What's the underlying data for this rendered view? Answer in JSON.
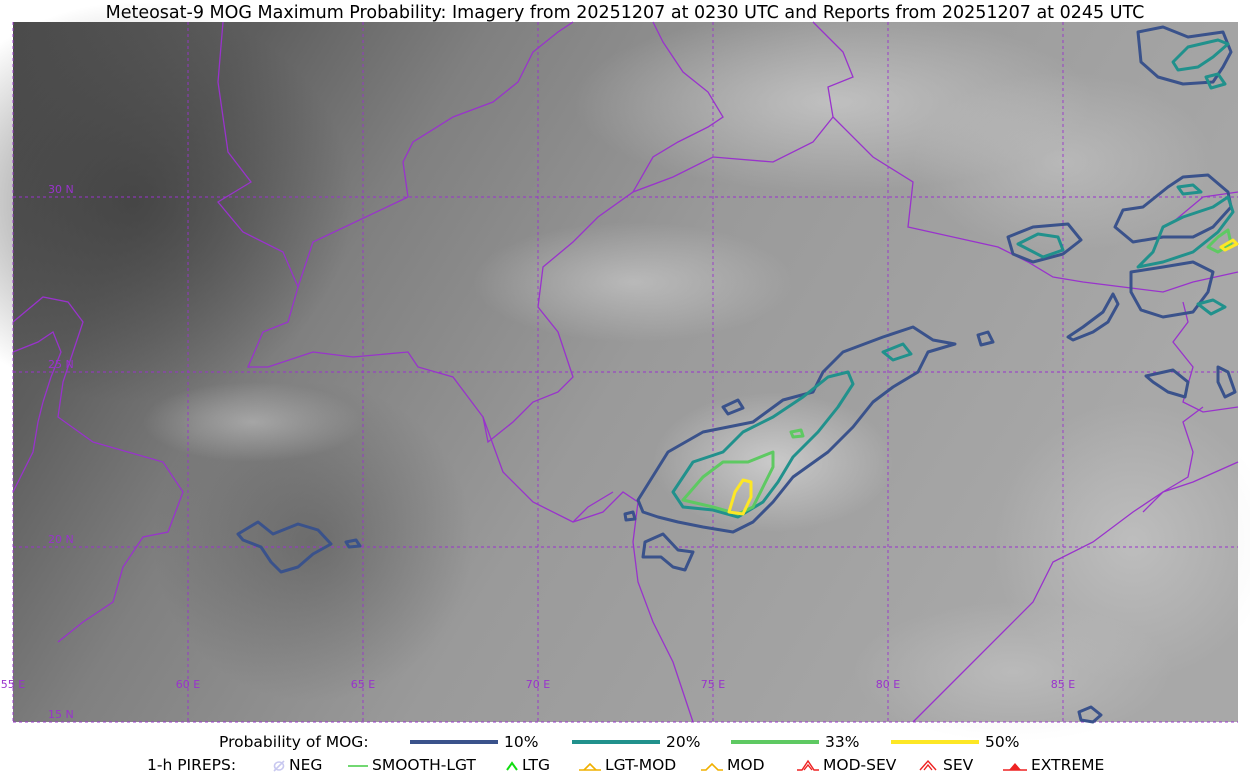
{
  "title": "Meteosat-9 MOG Maximum Probability: Imagery from 20251207 at 0230 UTC and Reports from 20251207 at 0245 UTC",
  "map": {
    "lon_range": [
      55,
      90
    ],
    "lat_range": [
      15,
      35
    ],
    "lon_labels": [
      {
        "lon": 55,
        "text": "55 E"
      },
      {
        "lon": 60,
        "text": "60 E"
      },
      {
        "lon": 65,
        "text": "65 E"
      },
      {
        "lon": 70,
        "text": "70 E"
      },
      {
        "lon": 75,
        "text": "75 E"
      },
      {
        "lon": 80,
        "text": "80 E"
      },
      {
        "lon": 85,
        "text": "85 E"
      }
    ],
    "lat_labels": [
      {
        "lat": 30,
        "text": "30 N"
      },
      {
        "lat": 25,
        "text": "25 N"
      },
      {
        "lat": 20,
        "text": "20 N"
      },
      {
        "lat": 15,
        "text": "15 N"
      }
    ],
    "colors": {
      "gridline": "#9933cc",
      "border": "#9933cc",
      "label": "#9933cc"
    }
  },
  "legend": {
    "probability_label": "Probability of MOG:",
    "probability_levels": [
      {
        "label": "10%",
        "color": "#3a528b"
      },
      {
        "label": "20%",
        "color": "#21918c"
      },
      {
        "label": "33%",
        "color": "#5ec962"
      },
      {
        "label": "50%",
        "color": "#fde725"
      }
    ],
    "pireps_label": "1-h PIREPS:",
    "pireps": [
      {
        "label": "NEG",
        "icon": "neg-icon",
        "color": "#c8c8f0"
      },
      {
        "label": "SMOOTH-LGT",
        "icon": "smooth-lgt-icon",
        "color": "#44cc44"
      },
      {
        "label": "LTG",
        "icon": "ltg-icon",
        "color": "#11dd11"
      },
      {
        "label": "LGT-MOD",
        "icon": "lgt-mod-icon",
        "color": "#f0b000"
      },
      {
        "label": "MOD",
        "icon": "mod-icon",
        "color": "#f0b000"
      },
      {
        "label": "MOD-SEV",
        "icon": "mod-sev-icon",
        "color": "#ee2222"
      },
      {
        "label": "SEV",
        "icon": "sev-icon",
        "color": "#ee2222"
      },
      {
        "label": "EXTREME",
        "icon": "extreme-icon",
        "color": "#ee2222"
      }
    ]
  }
}
